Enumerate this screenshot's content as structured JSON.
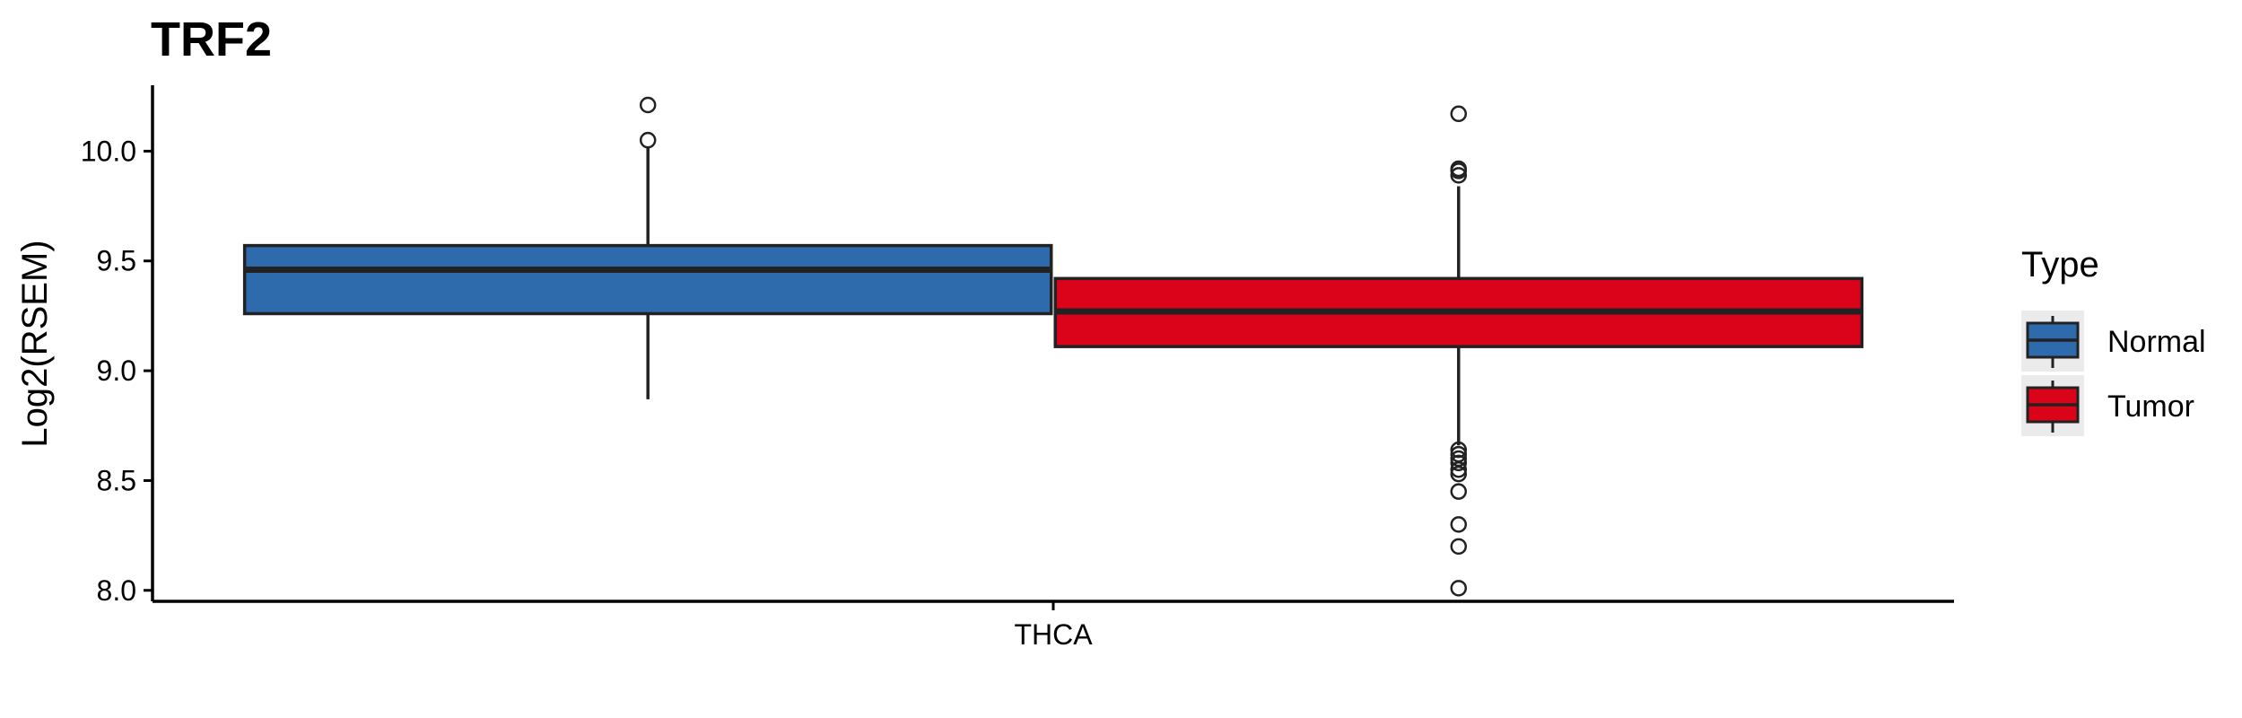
{
  "chart_data": {
    "type": "box",
    "title": "TRF2",
    "xlabel": "",
    "ylabel": "Log2(RSEM)",
    "categories": [
      "THCA"
    ],
    "ylim": [
      7.95,
      10.3
    ],
    "yticks": [
      "8.0",
      "8.5",
      "9.0",
      "9.5",
      "10.0"
    ],
    "grid": false,
    "legend": {
      "title": "Type",
      "position": "right"
    },
    "series": [
      {
        "name": "Normal",
        "color": "#2E6BAD",
        "q1": 9.26,
        "median": 9.46,
        "q3": 9.57,
        "whisker_low": 8.87,
        "whisker_high": 10.02,
        "outliers": [
          10.05,
          10.21
        ]
      },
      {
        "name": "Tumor",
        "color": "#DA031A",
        "q1": 9.11,
        "median": 9.27,
        "q3": 9.42,
        "whisker_low": 8.66,
        "whisker_high": 9.84,
        "outliers": [
          10.17,
          9.92,
          9.91,
          9.89,
          8.64,
          8.62,
          8.6,
          8.58,
          8.55,
          8.53,
          8.45,
          8.3,
          8.2,
          8.01
        ]
      }
    ]
  }
}
